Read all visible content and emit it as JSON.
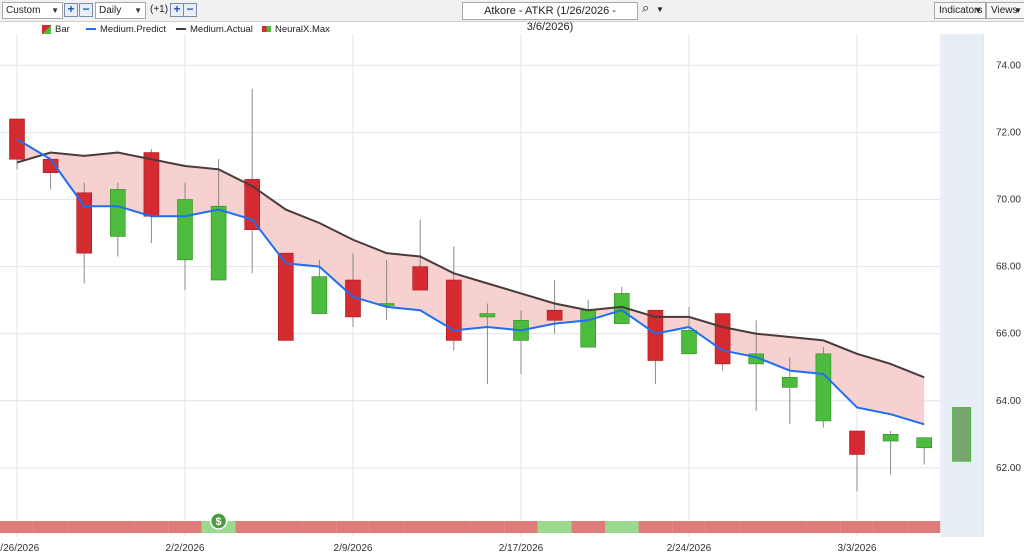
{
  "toolbar": {
    "period_select": "Custom",
    "interval_select": "Daily",
    "offset_label": "(+1)",
    "symbol_title": "Atkore - ATKR (1/26/2026 - 3/6/2026)",
    "indicators_label": "Indicators",
    "views_label": "Views"
  },
  "legend": {
    "bar": "Bar",
    "predict": "Medium.Predict",
    "actual": "Medium.Actual",
    "neural": "NeuralX.Max"
  },
  "colors": {
    "up": "#4cbb3e",
    "down": "#d52b30",
    "predict": "#1f6ff0",
    "actual": "#4a3b3b",
    "fill": "#f6c8c8",
    "forecast_band": "#e7eef6",
    "strip_red": "#e07b7b",
    "strip_green": "#9ad98e"
  },
  "chart_data": {
    "type": "bar",
    "ylim": [
      60,
      75
    ],
    "yticks": [
      "62.00",
      "64.00",
      "66.00",
      "68.00",
      "70.00",
      "72.00",
      "74.00"
    ],
    "ytick_values": [
      62,
      64,
      66,
      68,
      70,
      72,
      74
    ],
    "xticks": [
      "1/26/2026",
      "2/2/2026",
      "2/9/2026",
      "2/17/2026",
      "2/24/2026",
      "3/3/2026"
    ],
    "xtick_index": [
      0,
      5,
      10,
      15,
      20,
      25
    ],
    "ohlc": [
      {
        "o": 72.4,
        "h": 72.4,
        "l": 70.9,
        "c": 71.2
      },
      {
        "o": 71.2,
        "h": 71.2,
        "l": 70.3,
        "c": 70.8
      },
      {
        "o": 70.2,
        "h": 70.5,
        "l": 67.5,
        "c": 68.4
      },
      {
        "o": 68.9,
        "h": 70.5,
        "l": 68.3,
        "c": 70.3
      },
      {
        "o": 71.4,
        "h": 71.5,
        "l": 68.7,
        "c": 69.5
      },
      {
        "o": 68.2,
        "h": 70.5,
        "l": 67.3,
        "c": 70.0
      },
      {
        "o": 67.6,
        "h": 71.2,
        "l": 67.6,
        "c": 69.8
      },
      {
        "o": 70.6,
        "h": 73.3,
        "l": 67.8,
        "c": 69.1
      },
      {
        "o": 68.4,
        "h": 68.4,
        "l": 65.8,
        "c": 65.8
      },
      {
        "o": 66.6,
        "h": 68.2,
        "l": 66.6,
        "c": 67.7
      },
      {
        "o": 67.6,
        "h": 68.4,
        "l": 66.2,
        "c": 66.5
      },
      {
        "o": 66.9,
        "h": 68.2,
        "l": 66.4,
        "c": 66.9
      },
      {
        "o": 68.0,
        "h": 69.4,
        "l": 67.3,
        "c": 67.3
      },
      {
        "o": 67.6,
        "h": 68.6,
        "l": 65.5,
        "c": 65.8
      },
      {
        "o": 66.5,
        "h": 66.9,
        "l": 64.5,
        "c": 66.6
      },
      {
        "o": 65.8,
        "h": 66.7,
        "l": 64.8,
        "c": 66.4
      },
      {
        "o": 66.7,
        "h": 67.6,
        "l": 66.0,
        "c": 66.4
      },
      {
        "o": 65.6,
        "h": 67.0,
        "l": 65.6,
        "c": 66.7
      },
      {
        "o": 66.3,
        "h": 67.4,
        "l": 66.3,
        "c": 67.2
      },
      {
        "o": 66.7,
        "h": 66.7,
        "l": 64.5,
        "c": 65.2
      },
      {
        "o": 65.4,
        "h": 66.8,
        "l": 65.4,
        "c": 66.1
      },
      {
        "o": 66.6,
        "h": 66.6,
        "l": 64.9,
        "c": 65.1
      },
      {
        "o": 65.1,
        "h": 66.4,
        "l": 63.7,
        "c": 65.4
      },
      {
        "o": 64.4,
        "h": 65.3,
        "l": 63.3,
        "c": 64.7
      },
      {
        "o": 63.4,
        "h": 65.6,
        "l": 63.2,
        "c": 65.4
      },
      {
        "o": 63.1,
        "h": 63.1,
        "l": 61.3,
        "c": 62.4
      },
      {
        "o": 62.8,
        "h": 63.1,
        "l": 61.8,
        "c": 63.0
      },
      {
        "o": 62.6,
        "h": 62.9,
        "l": 62.1,
        "c": 62.9
      }
    ],
    "forecast_bar": {
      "low": 62.2,
      "high": 63.8
    },
    "series": [
      {
        "name": "Medium.Predict",
        "values": [
          71.8,
          71.2,
          69.8,
          69.8,
          69.5,
          69.5,
          69.7,
          69.4,
          68.1,
          68.0,
          67.1,
          66.8,
          66.7,
          66.1,
          66.2,
          66.1,
          66.3,
          66.4,
          66.7,
          66.0,
          66.2,
          65.5,
          65.3,
          64.9,
          64.8,
          63.8,
          63.6,
          63.3
        ]
      },
      {
        "name": "Medium.Actual",
        "values": [
          71.1,
          71.4,
          71.3,
          71.4,
          71.2,
          71.0,
          70.9,
          70.4,
          69.7,
          69.3,
          68.8,
          68.4,
          68.3,
          67.8,
          67.5,
          67.2,
          66.9,
          66.7,
          66.8,
          66.5,
          66.5,
          66.2,
          66.0,
          65.9,
          65.8,
          65.4,
          65.1,
          64.7
        ]
      }
    ],
    "signal_strip": [
      "r",
      "r",
      "r",
      "r",
      "r",
      "r",
      "g",
      "r",
      "r",
      "r",
      "r",
      "r",
      "r",
      "r",
      "r",
      "r",
      "g",
      "r",
      "g",
      "r",
      "r",
      "r",
      "r",
      "r",
      "r",
      "r",
      "r",
      "r"
    ],
    "signal_marker": "$"
  }
}
